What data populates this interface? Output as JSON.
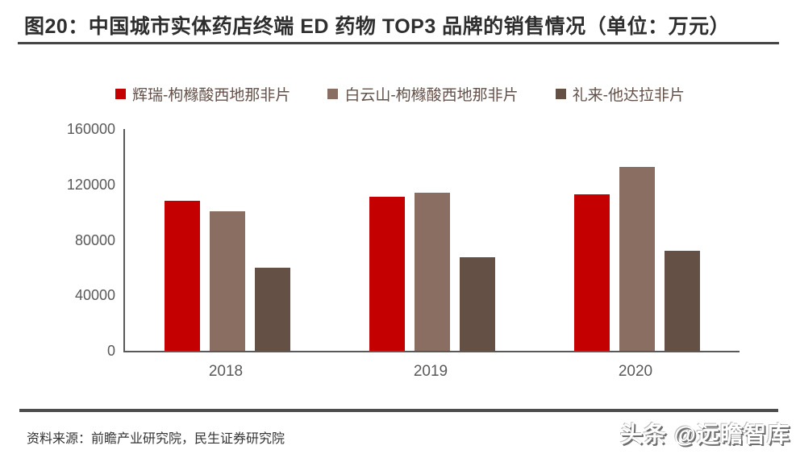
{
  "header": {
    "title": "图20：中国城市实体药店终端 ED 药物 TOP3 品牌的销售情况（单位：万元）"
  },
  "footer": {
    "source": "资料来源：前瞻产业研究院，民生证券研究院",
    "watermark": "头条 @远瞻智库"
  },
  "colors": {
    "series_red": "#c40000",
    "series_brown": "#8a6e62",
    "series_darkbrown": "#655046",
    "axis": "#595959",
    "rule": "#4d4d4d"
  },
  "chart_data": {
    "type": "bar",
    "title": "图20：中国城市实体药店终端 ED 药物 TOP3 品牌的销售情况（单位：万元）",
    "categories": [
      "2018",
      "2019",
      "2020"
    ],
    "series": [
      {
        "name": "辉瑞-枸橼酸西地那非片",
        "color": "#c40000",
        "values": [
          108000,
          111000,
          113000
        ]
      },
      {
        "name": "白云山-枸橼酸西地那非片",
        "color": "#8a6e62",
        "values": [
          100500,
          114000,
          132500
        ]
      },
      {
        "name": "礼来-他达拉非片",
        "color": "#655046",
        "values": [
          60000,
          67500,
          72000
        ]
      }
    ],
    "xlabel": "",
    "ylabel": "",
    "ylim": [
      0,
      160000
    ],
    "yticks": [
      0,
      40000,
      80000,
      120000,
      160000
    ],
    "grid": false,
    "legend_position": "top-center"
  }
}
